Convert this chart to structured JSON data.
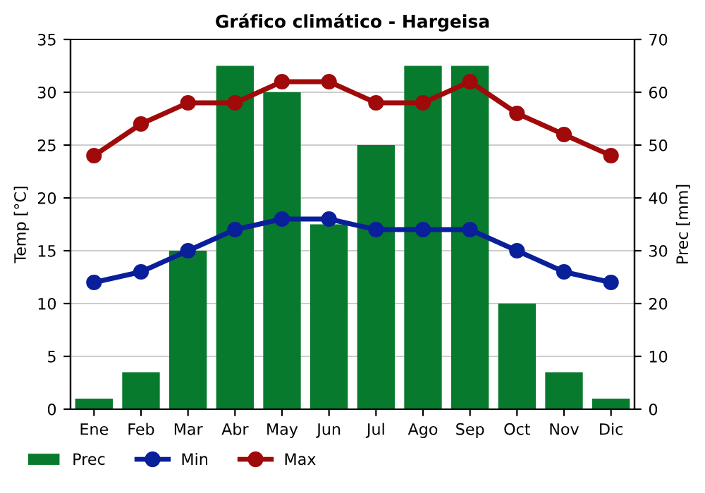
{
  "chart_data": {
    "type": "line",
    "title": "Gráfico climático - Hargeisa",
    "ylabel": "Temp [°C]",
    "y2label": "Prec [mm]",
    "categories": [
      "Ene",
      "Feb",
      "Mar",
      "Abr",
      "May",
      "Jun",
      "Jul",
      "Ago",
      "Sep",
      "Oct",
      "Nov",
      "Dic"
    ],
    "series": [
      {
        "name": "Prec",
        "type": "bar",
        "axis": "y2",
        "color": "#077a2d",
        "values": [
          2,
          7,
          30,
          65,
          60,
          35,
          50,
          65,
          65,
          20,
          7,
          2
        ]
      },
      {
        "name": "Min",
        "color": "#0a1f9a",
        "values": [
          12,
          13,
          15,
          17,
          18,
          18,
          17,
          17,
          17,
          15,
          13,
          12
        ]
      },
      {
        "name": "Max",
        "color": "#a00a0a",
        "values": [
          24,
          27,
          29,
          29,
          31,
          31,
          29,
          29,
          31,
          28,
          26,
          24
        ]
      }
    ],
    "ylim": [
      0,
      35
    ],
    "yticks": [
      0,
      5,
      10,
      15,
      20,
      25,
      30,
      35
    ],
    "y2lim": [
      0,
      70
    ],
    "y2ticks": [
      0,
      10,
      20,
      30,
      40,
      50,
      60,
      70
    ],
    "grid": "y",
    "legend": "bottom",
    "marker": "circle",
    "line_style": "solid"
  }
}
